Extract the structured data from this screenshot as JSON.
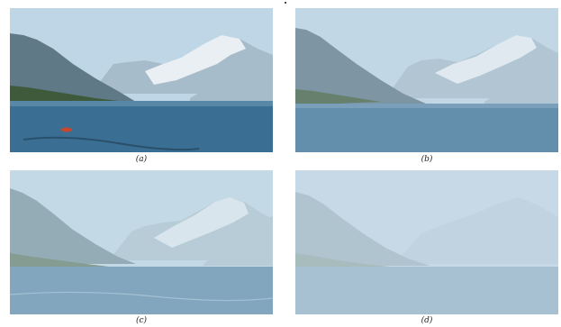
{
  "figure": {
    "panels": [
      {
        "id": "a",
        "caption": "(a)",
        "haze_level": 0.0
      },
      {
        "id": "b",
        "caption": "(b)",
        "haze_level": 0.35
      },
      {
        "id": "c",
        "caption": "(c)",
        "haze_level": 0.6
      },
      {
        "id": "d",
        "caption": "(d)",
        "haze_level": 0.9
      }
    ]
  },
  "colors": {
    "sky": "#bfd6e6",
    "mountain_dark": "#5f7a86",
    "mountain_far": "#a7bccb",
    "snow": "#e9eff3",
    "forest": "#3e5a3b",
    "water": "#3a6f93",
    "water_light": "#6d97b4",
    "haze": "#c9dbe6",
    "boat": "#c8472e"
  }
}
